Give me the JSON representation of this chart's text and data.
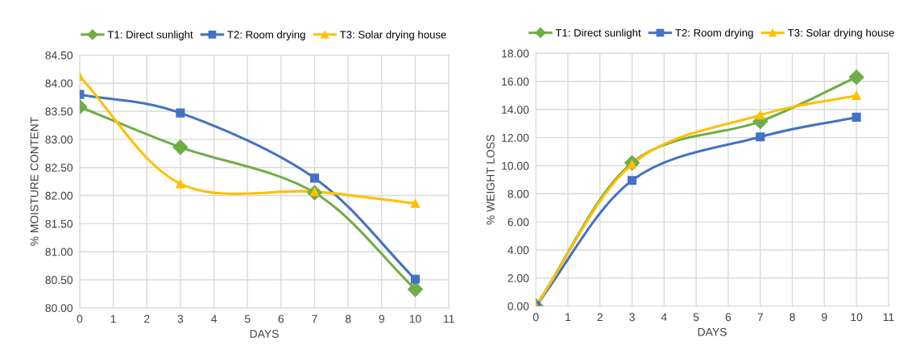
{
  "chart_data": [
    {
      "type": "line",
      "xlabel": "DAYS",
      "ylabel": "% MOISTURE CONTENT",
      "xlim": [
        0,
        11
      ],
      "xticks": [
        0,
        1,
        2,
        3,
        4,
        5,
        6,
        7,
        8,
        9,
        10,
        11
      ],
      "ylim": [
        80,
        84.5
      ],
      "yticks": [
        {
          "value": 80,
          "label": "80.00"
        },
        {
          "value": 80.5,
          "label": "80.50"
        },
        {
          "value": 81,
          "label": "81.00"
        },
        {
          "value": 81.5,
          "label": "81.50"
        },
        {
          "value": 82,
          "label": "82.00"
        },
        {
          "value": 82.5,
          "label": "82.50"
        },
        {
          "value": 83,
          "label": "83.00"
        },
        {
          "value": 83.5,
          "label": "83.50"
        },
        {
          "value": 84,
          "label": "84.00"
        },
        {
          "value": 84.5,
          "label": "84.50"
        }
      ],
      "grid": true,
      "legend": "top",
      "x": [
        0,
        3,
        7,
        10
      ],
      "series": [
        {
          "name": "T1: Direct sunlight",
          "color": "#70ad47",
          "marker": "diamond",
          "values": [
            83.58,
            82.86,
            82.05,
            80.33
          ]
        },
        {
          "name": "T2: Room drying",
          "color": "#4472c4",
          "marker": "square",
          "values": [
            83.8,
            83.47,
            82.31,
            80.51
          ]
        },
        {
          "name": "T3: Solar drying house",
          "color": "#ffc000",
          "marker": "triangle",
          "values": [
            84.12,
            82.21,
            82.07,
            81.86
          ]
        }
      ]
    },
    {
      "type": "line",
      "xlabel": "DAYS",
      "ylabel": "% WEIGHT LOSS",
      "xlim": [
        0,
        11
      ],
      "xticks": [
        0,
        1,
        2,
        3,
        4,
        5,
        6,
        7,
        8,
        9,
        10,
        11
      ],
      "ylim": [
        0,
        18
      ],
      "yticks": [
        {
          "value": 0,
          "label": "0.00"
        },
        {
          "value": 2,
          "label": "2.00"
        },
        {
          "value": 4,
          "label": "4.00"
        },
        {
          "value": 6,
          "label": "6.00"
        },
        {
          "value": 8,
          "label": "8.00"
        },
        {
          "value": 10,
          "label": "10.00"
        },
        {
          "value": 12,
          "label": "12.00"
        },
        {
          "value": 14,
          "label": "14.00"
        },
        {
          "value": 16,
          "label": "16.00"
        },
        {
          "value": 18,
          "label": "18.00"
        }
      ],
      "grid": true,
      "legend": "top",
      "x": [
        0,
        3,
        7,
        10
      ],
      "series": [
        {
          "name": "T1: Direct sunlight",
          "color": "#70ad47",
          "marker": "diamond",
          "values": [
            0,
            10.2,
            13.15,
            16.3
          ]
        },
        {
          "name": "T2: Room drying",
          "color": "#4472c4",
          "marker": "square",
          "values": [
            0,
            8.95,
            12.05,
            13.45
          ]
        },
        {
          "name": "T3: Solar drying house",
          "color": "#ffc000",
          "marker": "triangle",
          "values": [
            0,
            10.1,
            13.6,
            15.0
          ]
        }
      ]
    }
  ]
}
